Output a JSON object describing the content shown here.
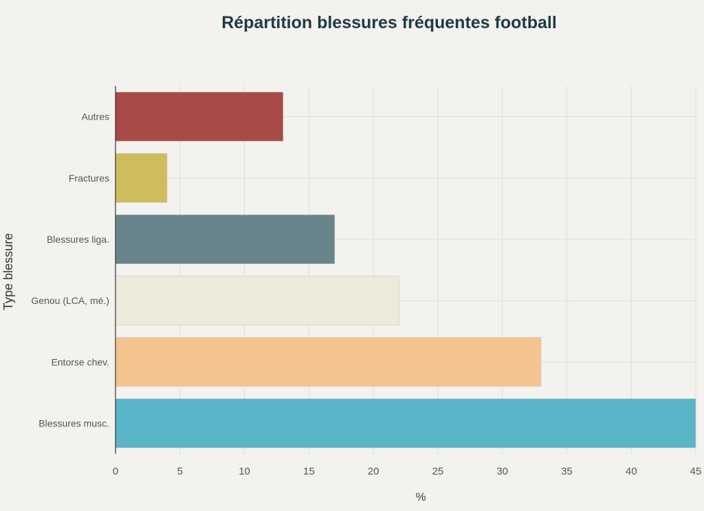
{
  "chart_data": {
    "type": "bar",
    "orientation": "horizontal",
    "title": "Répartition blessures fréquentes football",
    "xlabel": "%",
    "ylabel": "Type blessure",
    "categories": [
      "Autres",
      "Fractures",
      "Blessures liga.",
      "Genou (LCA, mé.)",
      "Entorse chev.",
      "Blessures musc."
    ],
    "values": [
      13,
      4,
      17,
      22,
      33,
      45
    ],
    "colors": [
      "#a84a47",
      "#cfbc5e",
      "#67858a",
      "#ebeadb",
      "#f4c48f",
      "#5ab5c8"
    ],
    "xlim": [
      0,
      45
    ],
    "xticks": [
      0,
      5,
      10,
      15,
      20,
      25,
      30,
      35,
      40,
      45
    ],
    "grid": true,
    "legend": "none"
  }
}
